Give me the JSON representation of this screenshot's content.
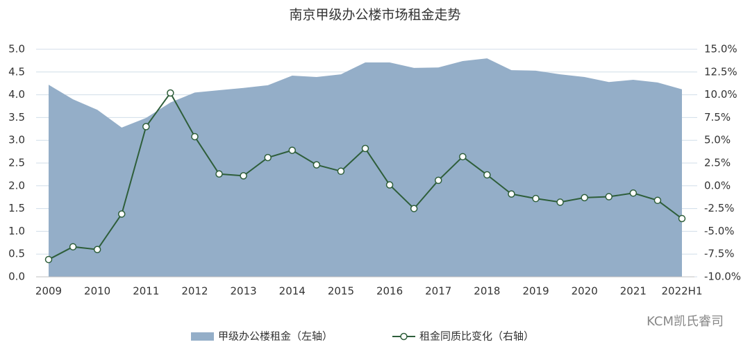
{
  "chart_data": {
    "type": "area-line",
    "title": "南京甲级办公楼市场租金走势",
    "categories": [
      "2009",
      null,
      "2010",
      null,
      "2011",
      null,
      "2012",
      null,
      "2013",
      null,
      "2014",
      null,
      "2015",
      null,
      "2016",
      null,
      "2017",
      null,
      "2018",
      null,
      "2019",
      null,
      "2020",
      null,
      "2021",
      null,
      "2022H1"
    ],
    "series": [
      {
        "name": "甲级办公楼租金（左轴）",
        "color": "#94aec8",
        "type": "area",
        "values": [
          4.22,
          3.9,
          3.67,
          3.28,
          3.49,
          3.83,
          4.05,
          4.1,
          4.15,
          4.21,
          4.42,
          4.39,
          4.45,
          4.71,
          4.71,
          4.59,
          4.6,
          4.74,
          4.8,
          4.54,
          4.53,
          4.45,
          4.39,
          4.28,
          4.33,
          4.27,
          4.12
        ]
      },
      {
        "name": "租金同质比变化（右轴）",
        "color": "#2e5e3a",
        "type": "line",
        "axis": "y2",
        "values": [
          -8.1,
          -6.7,
          -7.0,
          -3.1,
          6.5,
          10.2,
          5.4,
          1.3,
          1.1,
          3.1,
          3.9,
          2.3,
          1.6,
          4.1,
          0.1,
          -2.5,
          0.6,
          3.2,
          1.2,
          -0.9,
          -1.4,
          -1.8,
          -1.3,
          -1.2,
          -0.8,
          -1.6,
          -3.6
        ]
      }
    ],
    "ylim": [
      0,
      5
    ],
    "yticks": [
      {
        "value": 0,
        "label": "0.0"
      },
      {
        "value": 0.5,
        "label": "0.5"
      },
      {
        "value": 1,
        "label": "1.0"
      },
      {
        "value": 1.5,
        "label": "1.5"
      },
      {
        "value": 2,
        "label": "2.0"
      },
      {
        "value": 2.5,
        "label": "2.5"
      },
      {
        "value": 3,
        "label": "3.0"
      },
      {
        "value": 3.5,
        "label": "3.5"
      },
      {
        "value": 4,
        "label": "4.0"
      },
      {
        "value": 4.5,
        "label": "4.5"
      },
      {
        "value": 5,
        "label": "5.0"
      }
    ],
    "y2lim": [
      -10,
      15
    ],
    "y2ticks": [
      {
        "value": -10,
        "label": "-10.0%"
      },
      {
        "value": -7.5,
        "label": "-7.5%"
      },
      {
        "value": -5,
        "label": "-5.0%"
      },
      {
        "value": -2.5,
        "label": "-2.5%"
      },
      {
        "value": 0,
        "label": "0.0%"
      },
      {
        "value": 2.5,
        "label": "2.5%"
      },
      {
        "value": 5,
        "label": "5.0%"
      },
      {
        "value": 7.5,
        "label": "7.5%"
      },
      {
        "value": 10,
        "label": "10.0%"
      },
      {
        "value": 12.5,
        "label": "12.5%"
      },
      {
        "value": 15,
        "label": "15.0%"
      }
    ],
    "grid": true,
    "legend": "bottom",
    "watermark": "KCM凯氏睿司"
  }
}
